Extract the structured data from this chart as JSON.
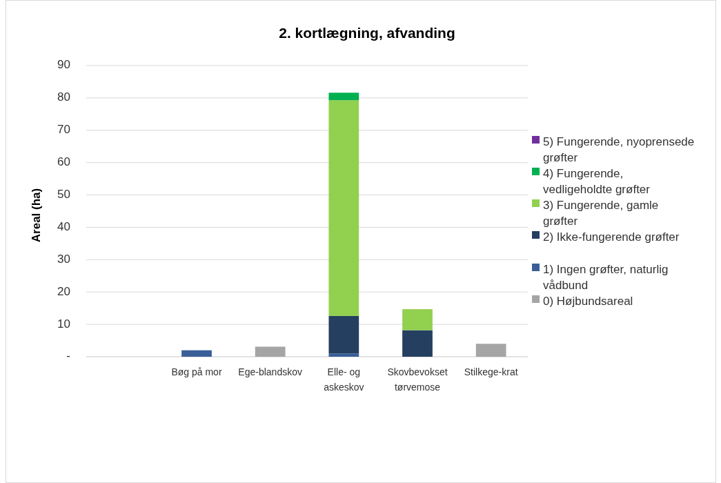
{
  "chart_data": {
    "type": "bar",
    "title": "2. kortlægning,  afvanding",
    "ylabel": "Areal (ha)",
    "categories": [
      null,
      "Bøg på mor",
      "Ege-blandskov",
      "Elle- og askeskov",
      "Skovbevokset tørvemose",
      "Stilkege-krat"
    ],
    "stacked": true,
    "ylim": [
      0,
      90
    ],
    "yticks": [
      {
        "value": 0,
        "label": "-"
      },
      10,
      20,
      30,
      40,
      50,
      60,
      70,
      80,
      90
    ],
    "grid": "y",
    "legend": "right",
    "series": [
      {
        "name": "0) Højbundsareal",
        "color": "#a5a5a5",
        "values": [
          null,
          null,
          3.1,
          null,
          null,
          4.0
        ]
      },
      {
        "name": "1) Ingen grøfter, naturlig vådbund",
        "color": "#3a5f98",
        "values": [
          null,
          2.0,
          null,
          1.0,
          null,
          null
        ]
      },
      {
        "name": "2) Ikke-fungerende grøfter",
        "color": "#243f60",
        "values": [
          null,
          null,
          null,
          11.6,
          8.2,
          null
        ]
      },
      {
        "name": "3) Fungerende, gamle grøfter",
        "color": "#92d050",
        "values": [
          null,
          null,
          null,
          66.7,
          6.5,
          null
        ]
      },
      {
        "name": "4) Fungerende, vedligeholdte grøfter",
        "color": "#00b050",
        "values": [
          null,
          null,
          null,
          2.3,
          null,
          null
        ]
      },
      {
        "name": "5) Fungerende, nyoprensede grøfter",
        "color": "#7030a0",
        "values": [
          null,
          null,
          null,
          null,
          null,
          null
        ]
      }
    ]
  }
}
